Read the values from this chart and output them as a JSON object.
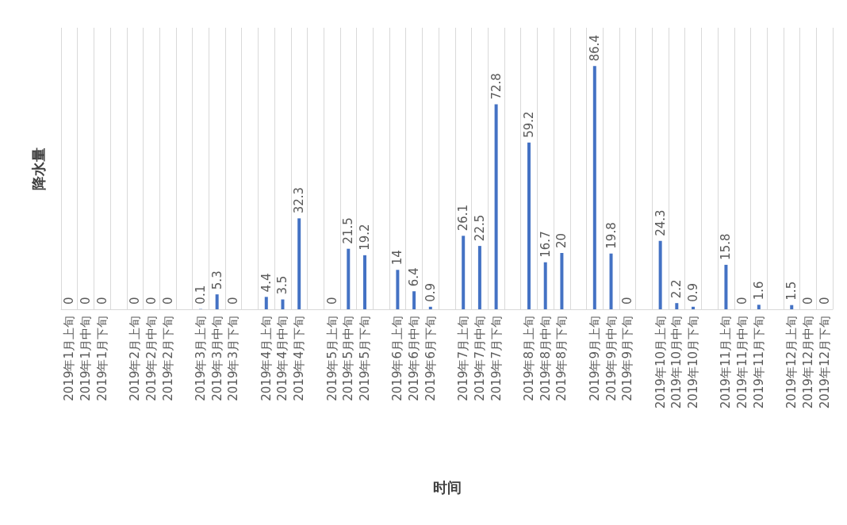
{
  "chart_data": {
    "type": "bar",
    "xlabel": "时间",
    "ylabel": "降水量",
    "color": "#4472c4",
    "grid": "x",
    "data_labels": true,
    "categories": [
      "2019年1月上旬",
      "2019年1月中旬",
      "2019年1月下旬",
      null,
      "2019年2月上旬",
      "2019年2月中旬",
      "2019年2月下旬",
      null,
      "2019年3月上旬",
      "2019年3月中旬",
      "2019年3月下旬",
      null,
      "2019年4月上旬",
      "2019年4月中旬",
      "2019年4月下旬",
      null,
      "2019年5月上旬",
      "2019年5月中旬",
      "2019年5月下旬",
      null,
      "2019年6月上旬",
      "2019年6月中旬",
      "2019年6月下旬",
      null,
      "2019年7月上旬",
      "2019年7月中旬",
      "2019年7月下旬",
      null,
      "2019年8月上旬",
      "2019年8月中旬",
      "2019年8月下旬",
      null,
      "2019年9月上旬",
      "2019年9月中旬",
      "2019年9月下旬",
      null,
      "2019年10月上旬",
      "2019年10月中旬",
      "2019年10月下旬",
      null,
      "2019年11月上旬",
      "2019年11月中旬",
      "2019年11月下旬",
      null,
      "2019年12月上旬",
      "2019年12月中旬",
      "2019年12月下旬"
    ],
    "values": [
      0,
      0,
      0,
      null,
      0,
      0,
      0,
      null,
      0.1,
      5.3,
      0,
      null,
      4.4,
      3.5,
      32.3,
      null,
      0,
      21.5,
      19.2,
      null,
      14,
      6.4,
      0.9,
      null,
      26.1,
      22.5,
      72.8,
      null,
      59.2,
      16.7,
      20,
      null,
      86.4,
      19.8,
      0,
      null,
      24.3,
      2.2,
      0.9,
      null,
      15.8,
      0,
      1.6,
      null,
      1.5,
      0,
      0
    ]
  }
}
